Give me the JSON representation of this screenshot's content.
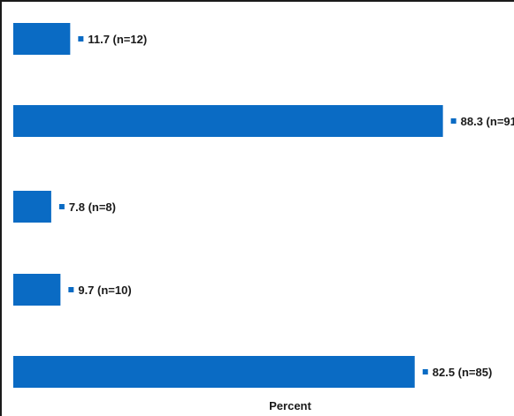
{
  "chart_data": {
    "type": "bar",
    "orientation": "horizontal",
    "values": [
      11.7,
      88.3,
      7.8,
      9.7,
      82.5
    ],
    "counts": [
      12,
      91,
      8,
      10,
      85
    ],
    "data_labels": [
      "11.7 (n=12)",
      "88.3 (n=91",
      "7.8 (n=8)",
      "9.7 (n=10)",
      "82.5 (n=85)"
    ],
    "xlabel": "Percent",
    "xlim": [
      0,
      100
    ],
    "grid": false,
    "bar_color": "#0a6bc4"
  }
}
